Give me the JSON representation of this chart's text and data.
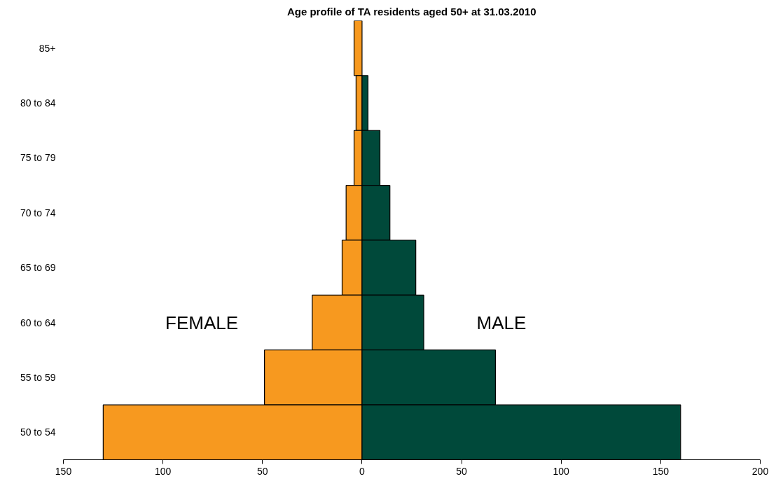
{
  "chart_data": {
    "type": "bar",
    "orientation": "horizontal",
    "title": "Age profile of TA residents aged 50+ at 31.03.2010",
    "categories": [
      "85+",
      "80 to 84",
      "75 to 79",
      "70 to 74",
      "65 to 69",
      "60 to 64",
      "55 to 59",
      "50 to 54"
    ],
    "series": [
      {
        "name": "FEMALE",
        "color": "#f7991f",
        "values": [
          -4,
          -3,
          -4,
          -8,
          -10,
          -25,
          -49,
          -130
        ]
      },
      {
        "name": "MALE",
        "color": "#00493a",
        "values": [
          null,
          3,
          9,
          14,
          27,
          31,
          67,
          160
        ]
      }
    ],
    "xlim": [
      -150,
      200
    ],
    "xticks": [
      {
        "value": -150,
        "label": "150"
      },
      {
        "value": -100,
        "label": "100"
      },
      {
        "value": -50,
        "label": "50"
      },
      0,
      50,
      100,
      150,
      200
    ],
    "stacked": true,
    "grid": false
  }
}
